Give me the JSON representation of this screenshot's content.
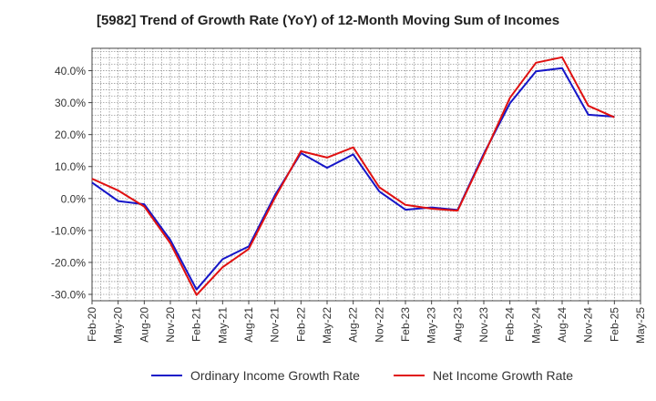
{
  "chart_data": {
    "type": "line",
    "title": "[5982]  Trend of Growth Rate (YoY) of 12-Month Moving Sum of Incomes",
    "xlabel": "",
    "ylabel": "",
    "categories": [
      "Feb-20",
      "May-20",
      "Aug-20",
      "Nov-20",
      "Feb-21",
      "May-21",
      "Aug-21",
      "Nov-21",
      "Feb-22",
      "May-22",
      "Aug-22",
      "Nov-22",
      "Feb-23",
      "May-23",
      "Aug-23",
      "Nov-23",
      "Feb-24",
      "May-24",
      "Aug-24",
      "Nov-24",
      "Feb-25",
      "May-25"
    ],
    "y_ticks": [
      -30,
      -20,
      -10,
      0,
      10,
      20,
      30,
      40
    ],
    "y_tick_labels": [
      "-30.0%",
      "-20.0%",
      "-10.0%",
      "0.0%",
      "10.0%",
      "20.0%",
      "30.0%",
      "40.0%"
    ],
    "ylim": [
      -32,
      47
    ],
    "grid": true,
    "legend": "bottom",
    "series": [
      {
        "name": "Ordinary Income Growth Rate",
        "color": "#1515c8",
        "values": [
          5.0,
          -0.8,
          -1.8,
          -13.0,
          -28.5,
          -19.0,
          -15.0,
          1.0,
          14.2,
          9.6,
          13.8,
          2.2,
          -3.5,
          -2.8,
          -3.6,
          14.0,
          29.8,
          39.8,
          40.8,
          26.2,
          25.6,
          null
        ]
      },
      {
        "name": "Net Income Growth Rate",
        "color": "#e01010",
        "values": [
          6.2,
          2.5,
          -2.5,
          -14.0,
          -30.2,
          -21.5,
          -15.8,
          0.2,
          14.8,
          12.8,
          16.0,
          3.5,
          -2.0,
          -3.2,
          -3.8,
          13.5,
          31.5,
          42.5,
          44.2,
          29.0,
          25.4,
          null
        ]
      }
    ]
  }
}
